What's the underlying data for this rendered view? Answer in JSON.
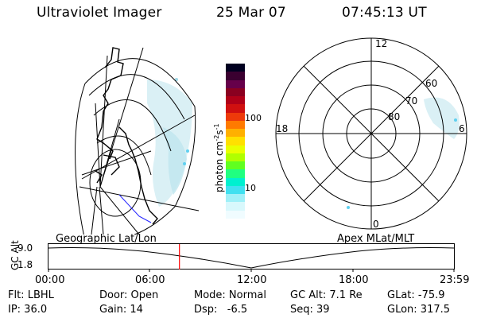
{
  "header": {
    "title": "Ultraviolet Imager",
    "date": "25 Mar 07",
    "time": "07:45:13 UT"
  },
  "colorbar": {
    "unit_label": "photon cm",
    "unit_exp1": "-2",
    "unit_s": "s",
    "unit_exp2": "-1",
    "ticks": [
      {
        "label": "100"
      },
      {
        "label": "10"
      }
    ],
    "colors": [
      "#000020",
      "#3a0030",
      "#66004a",
      "#8a0020",
      "#b00018",
      "#d01010",
      "#ee3a0a",
      "#ff7a00",
      "#ffb000",
      "#ffe000",
      "#e8ff00",
      "#b0ff00",
      "#60ff20",
      "#20ff80",
      "#00f0d0",
      "#40e0f0",
      "#a0f0f8",
      "#d8f8fc",
      "#f0fcff"
    ]
  },
  "polar_plot": {
    "labels": {
      "top": "12",
      "left": "18",
      "right": "6",
      "bottom": "0",
      "lat60": "60",
      "lat70": "70",
      "lat80": "80"
    }
  },
  "timeline": {
    "left_label": "Geographic Lat/Lon",
    "right_label": "Apex MLat/MLT",
    "axis_title": "GC Alt",
    "y_ticks": [
      "9.0",
      "1.8"
    ],
    "x_ticks": [
      "00:00",
      "06:00",
      "12:00",
      "18:00",
      "23:59"
    ],
    "marker_time": "07:45",
    "marker_color": "#ff0000"
  },
  "status": {
    "filter": "Flt: LBHL",
    "ip": "IP: 36.0",
    "door": "Door: Open",
    "gain": "Gain: 14",
    "mode": "Mode: Normal",
    "dsp": "Dsp:   -6.5",
    "gc_alt": "GC Alt: 7.1 Re",
    "seq": "Seq: 39",
    "glat": "GLat: -75.9",
    "glon": "GLon: 317.5"
  }
}
